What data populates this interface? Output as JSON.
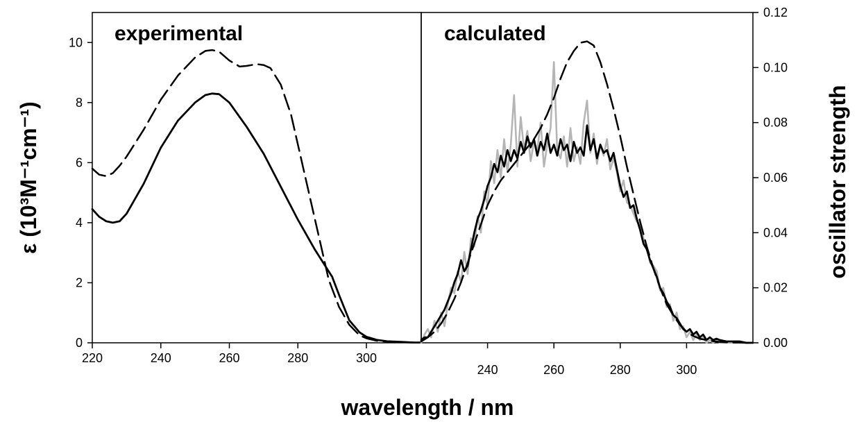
{
  "chart_data": [
    {
      "type": "line",
      "panel": "experimental",
      "title": "experimental",
      "xlabel": "wavelength / nm",
      "ylabel": "ε (10³M⁻¹cm⁻¹)",
      "xlim": [
        220,
        316
      ],
      "ylim": [
        0,
        11
      ],
      "x_ticks": [
        220,
        240,
        260,
        280,
        300
      ],
      "y_ticks": [
        0,
        2,
        4,
        6,
        8,
        10
      ],
      "series": [
        {
          "style": "dashed",
          "color": "#000000",
          "x": [
            220,
            222,
            224,
            226,
            228,
            230,
            235,
            240,
            245,
            250,
            253,
            255,
            257,
            260,
            263,
            265,
            268,
            270,
            272,
            275,
            278,
            280,
            283,
            286,
            289,
            292,
            295,
            298,
            300,
            303,
            306,
            310,
            314,
            316
          ],
          "y": [
            5.8,
            5.6,
            5.55,
            5.65,
            5.9,
            6.2,
            7.1,
            8.1,
            8.9,
            9.5,
            9.72,
            9.75,
            9.7,
            9.4,
            9.2,
            9.22,
            9.28,
            9.25,
            9.15,
            8.6,
            7.6,
            6.6,
            5.1,
            3.6,
            2.1,
            1.2,
            0.6,
            0.25,
            0.15,
            0.07,
            0.04,
            0.02,
            0.01,
            0.01
          ]
        },
        {
          "style": "solid",
          "color": "#000000",
          "x": [
            220,
            222,
            224,
            226,
            228,
            230,
            235,
            240,
            245,
            250,
            253,
            255,
            257,
            260,
            265,
            270,
            275,
            280,
            285,
            290,
            292,
            295,
            298,
            300,
            303,
            306,
            310,
            314,
            316
          ],
          "y": [
            4.45,
            4.2,
            4.05,
            4.0,
            4.05,
            4.3,
            5.3,
            6.5,
            7.4,
            8.0,
            8.25,
            8.3,
            8.28,
            8.0,
            7.2,
            6.3,
            5.2,
            4.1,
            3.1,
            2.2,
            1.6,
            0.75,
            0.35,
            0.2,
            0.1,
            0.05,
            0.03,
            0.01,
            0.01
          ]
        }
      ]
    },
    {
      "type": "line",
      "panel": "calculated",
      "title": "calculated",
      "xlabel": "wavelength / nm",
      "ylabel": "oscillator strength",
      "xlim": [
        220,
        320
      ],
      "ylim": [
        0,
        0.12
      ],
      "x_ticks": [
        240,
        260,
        280,
        300
      ],
      "y_ticks": [
        0.0,
        0.02,
        0.04,
        0.06,
        0.08,
        0.1,
        0.12
      ],
      "y_tick_labels": [
        "0.00",
        "0.02",
        "0.04",
        "0.06",
        "0.08",
        "0.10",
        "0.12"
      ],
      "series": [
        {
          "style": "dashed",
          "color": "#000000",
          "x": [
            220,
            222,
            224,
            226,
            228,
            230,
            232,
            234,
            236,
            238,
            240,
            242,
            244,
            246,
            248,
            250,
            252,
            254,
            256,
            258,
            260,
            262,
            264,
            266,
            268,
            270,
            272,
            274,
            276,
            278,
            280,
            282,
            284,
            286,
            288,
            290,
            292,
            294,
            296,
            298,
            300,
            302,
            304,
            306,
            308,
            310,
            312,
            314,
            316,
            318,
            320
          ],
          "y": [
            0.0005,
            0.002,
            0.004,
            0.007,
            0.011,
            0.016,
            0.022,
            0.029,
            0.036,
            0.043,
            0.05,
            0.055,
            0.059,
            0.062,
            0.065,
            0.068,
            0.071,
            0.074,
            0.078,
            0.083,
            0.089,
            0.096,
            0.102,
            0.106,
            0.109,
            0.1095,
            0.108,
            0.102,
            0.094,
            0.085,
            0.075,
            0.064,
            0.054,
            0.044,
            0.035,
            0.027,
            0.02,
            0.014,
            0.01,
            0.0065,
            0.004,
            0.0025,
            0.0015,
            0.001,
            0.0006,
            0.0003,
            0.0002,
            0.0001,
            0.0001,
            0.0,
            0.0
          ]
        },
        {
          "style": "solid",
          "color": "#000000",
          "x": [
            220,
            221,
            222,
            223,
            224,
            225,
            226,
            227,
            228,
            229,
            230,
            231,
            232,
            233,
            234,
            235,
            236,
            237,
            238,
            239,
            240,
            241,
            242,
            243,
            244,
            245,
            246,
            247,
            248,
            249,
            250,
            251,
            252,
            253,
            254,
            255,
            256,
            257,
            258,
            259,
            260,
            261,
            262,
            263,
            264,
            265,
            266,
            267,
            268,
            269,
            270,
            271,
            272,
            273,
            274,
            275,
            276,
            277,
            278,
            279,
            280,
            281,
            282,
            283,
            284,
            285,
            286,
            287,
            288,
            289,
            290,
            291,
            292,
            293,
            294,
            295,
            296,
            297,
            298,
            299,
            300,
            301,
            302,
            303,
            304,
            305,
            306,
            307,
            308,
            309,
            310,
            312,
            314,
            316,
            318,
            320
          ],
          "y": [
            0.001,
            0.002,
            0.002,
            0.004,
            0.006,
            0.008,
            0.01,
            0.012,
            0.015,
            0.018,
            0.022,
            0.025,
            0.03,
            0.026,
            0.028,
            0.034,
            0.04,
            0.045,
            0.048,
            0.052,
            0.057,
            0.06,
            0.065,
            0.062,
            0.068,
            0.064,
            0.07,
            0.066,
            0.07,
            0.067,
            0.073,
            0.069,
            0.075,
            0.071,
            0.074,
            0.068,
            0.073,
            0.07,
            0.076,
            0.069,
            0.072,
            0.068,
            0.074,
            0.07,
            0.072,
            0.066,
            0.073,
            0.069,
            0.071,
            0.068,
            0.079,
            0.07,
            0.074,
            0.067,
            0.072,
            0.069,
            0.07,
            0.066,
            0.069,
            0.063,
            0.057,
            0.053,
            0.055,
            0.049,
            0.05,
            0.045,
            0.041,
            0.036,
            0.034,
            0.03,
            0.027,
            0.024,
            0.02,
            0.018,
            0.015,
            0.013,
            0.01,
            0.009,
            0.007,
            0.005,
            0.004,
            0.005,
            0.003,
            0.004,
            0.002,
            0.003,
            0.001,
            0.002,
            0.001,
            0.0015,
            0.001,
            0.0005,
            0.0005,
            0.0005,
            0.0,
            0.0
          ]
        },
        {
          "style": "solid",
          "color": "#b5b5b5",
          "x": [
            220,
            221,
            222,
            223,
            224,
            225,
            226,
            227,
            228,
            229,
            230,
            231,
            232,
            233,
            234,
            235,
            236,
            237,
            238,
            239,
            240,
            241,
            242,
            243,
            244,
            245,
            246,
            247,
            248,
            249,
            250,
            251,
            252,
            253,
            254,
            255,
            256,
            257,
            258,
            259,
            260,
            261,
            262,
            263,
            264,
            265,
            266,
            267,
            268,
            269,
            270,
            271,
            272,
            273,
            274,
            275,
            276,
            277,
            278,
            279,
            280,
            281,
            282,
            283,
            284,
            285,
            286,
            287,
            288,
            289,
            290,
            291,
            292,
            293,
            294,
            295,
            296,
            297,
            298,
            299,
            300,
            301,
            302,
            303,
            304,
            305,
            306,
            307,
            308,
            309,
            310,
            312,
            314,
            316,
            318,
            320
          ],
          "y": [
            0.0,
            0.003,
            0.005,
            0.002,
            0.008,
            0.004,
            0.011,
            0.006,
            0.014,
            0.02,
            0.018,
            0.026,
            0.022,
            0.033,
            0.025,
            0.038,
            0.035,
            0.046,
            0.04,
            0.055,
            0.05,
            0.066,
            0.058,
            0.07,
            0.06,
            0.074,
            0.062,
            0.072,
            0.09,
            0.064,
            0.082,
            0.07,
            0.077,
            0.066,
            0.073,
            0.07,
            0.08,
            0.064,
            0.072,
            0.078,
            0.102,
            0.07,
            0.067,
            0.075,
            0.064,
            0.078,
            0.066,
            0.071,
            0.065,
            0.08,
            0.088,
            0.069,
            0.076,
            0.065,
            0.072,
            0.068,
            0.074,
            0.063,
            0.067,
            0.062,
            0.055,
            0.059,
            0.051,
            0.05,
            0.047,
            0.044,
            0.043,
            0.038,
            0.035,
            0.029,
            0.028,
            0.026,
            0.019,
            0.02,
            0.013,
            0.014,
            0.008,
            0.011,
            0.005,
            0.006,
            0.002,
            0.004,
            0.001,
            0.003,
            0.001,
            0.002,
            0.0,
            0.001,
            0.0,
            0.001,
            0.0,
            0.0,
            0.0,
            0.0,
            0.0,
            0.0
          ]
        }
      ]
    }
  ]
}
